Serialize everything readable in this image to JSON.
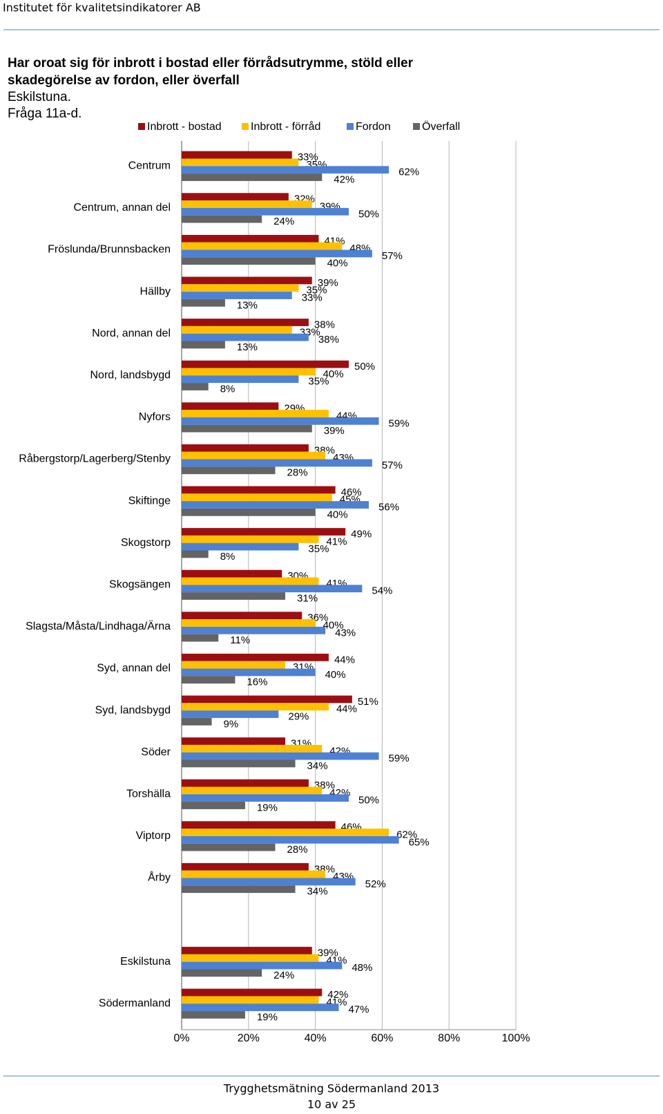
{
  "header": {
    "org": "Institutet för kvalitetsindikatorer AB"
  },
  "footer": {
    "title": "Trygghetsmätning Södermanland 2013",
    "page": "10 av 25"
  },
  "chart_data": {
    "type": "hbar",
    "title": [
      "Har oroat sig för inbrott i bostad eller förrådsutrymme, stöld eller",
      "skadegörelse av fordon, eller överfall"
    ],
    "subtitle": [
      "Eskilstuna.",
      "Fråga 11a-d."
    ],
    "categories": [
      "Centrum",
      "Centrum, annan del",
      "Fröslunda/Brunnsbacken",
      "Hällby",
      "Nord, annan del",
      "Nord, landsbygd",
      "Nyfors",
      "Råbergstorp/Lagerberg/Stenby",
      "Skiftinge",
      "Skogstorp",
      "Skogsängen",
      "Slagsta/Måsta/Lindhaga/Ärna",
      "Syd, annan del",
      "Syd, landsbygd",
      "Söder",
      "Torshälla",
      "Viptorp",
      "Årby",
      null,
      "Eskilstuna",
      "Södermanland"
    ],
    "series": [
      {
        "name": "Inbrott - bostad",
        "color": "#9b0f12",
        "values": [
          33,
          32,
          41,
          39,
          38,
          50,
          29,
          38,
          46,
          49,
          30,
          36,
          44,
          51,
          31,
          38,
          46,
          38,
          null,
          39,
          42
        ],
        "value_labels": [
          "33%",
          "32%",
          "41%",
          "39%",
          "38%",
          "50%",
          "29%",
          "38%",
          "46%",
          "49%",
          "30%",
          "36%",
          "44%",
          "51%",
          "31%",
          "38%",
          "46%",
          "38%",
          null,
          "39%",
          "42%"
        ]
      },
      {
        "name": "Inbrott - förråd",
        "color": "#ffc000",
        "values": [
          35,
          39,
          48,
          35,
          33,
          40,
          44,
          43,
          45,
          41,
          41,
          40,
          31,
          44,
          42,
          42,
          62,
          43,
          null,
          41,
          41
        ],
        "value_labels": [
          "35%",
          "39%",
          "48%",
          "35%",
          "33%",
          "40%",
          "44%",
          "43%",
          "45%",
          "41%",
          "41%",
          "40%",
          "31%",
          "44%",
          "42%",
          "42%",
          "62%",
          "43%",
          null,
          "41%",
          "41%"
        ]
      },
      {
        "name": "Fordon",
        "color": "#4f81d2",
        "values": [
          62,
          50,
          57,
          33,
          38,
          35,
          59,
          57,
          56,
          35,
          54,
          43,
          40,
          29,
          59,
          50,
          65,
          52,
          null,
          48,
          47
        ],
        "value_labels": [
          "62%",
          "50%",
          "57%",
          "33%",
          "38%",
          "35%",
          "59%",
          "57%",
          "56%",
          "35%",
          "54%",
          "43%",
          "40%",
          "29%",
          "59%",
          "50%",
          "65%",
          "52%",
          null,
          "48%",
          "47%"
        ]
      },
      {
        "name": "Överfall",
        "color": "#646464",
        "values": [
          42,
          24,
          40,
          13,
          13,
          8,
          39,
          28,
          40,
          8,
          31,
          11,
          16,
          9,
          34,
          19,
          28,
          34,
          null,
          24,
          19
        ],
        "value_labels": [
          "42%",
          "24%",
          "40%",
          "13%",
          "13%",
          "8%",
          "39%",
          "28%",
          "40%",
          "8%",
          "31%",
          "11%",
          "16%",
          "9%",
          "34%",
          "19%",
          "28%",
          "34%",
          null,
          "24%",
          "19%"
        ]
      }
    ],
    "xlim": [
      0,
      100
    ],
    "xticks": [
      {
        "value": 0,
        "label": "0%"
      },
      {
        "value": 20,
        "label": "20%"
      },
      {
        "value": 40,
        "label": "40%"
      },
      {
        "value": 60,
        "label": "60%"
      },
      {
        "value": 80,
        "label": "80%"
      },
      {
        "value": 100,
        "label": "100%"
      }
    ],
    "grid": true,
    "legend": "top"
  }
}
